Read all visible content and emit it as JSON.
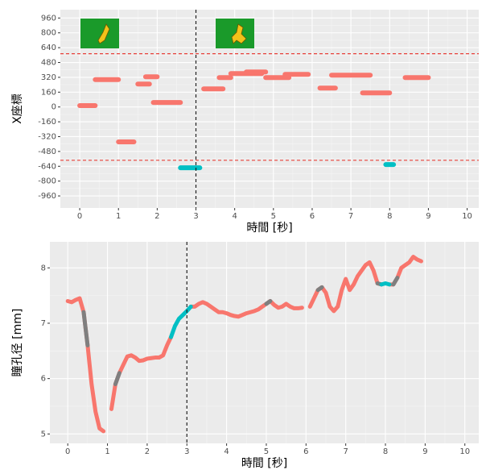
{
  "chart_data": [
    {
      "type": "segments",
      "xlabel": "時間 [秒]",
      "ylabel": "X座標",
      "xlim": [
        -0.5,
        10.3
      ],
      "xticks": [
        0,
        1,
        2,
        3,
        4,
        5,
        6,
        7,
        8,
        9,
        10
      ],
      "ylim": [
        -1090,
        1050
      ],
      "yticks": [
        960,
        800,
        640,
        480,
        320,
        160,
        0,
        -160,
        -320,
        -480,
        -640,
        -800,
        -960
      ],
      "grid": true,
      "segments": {
        "x0": [
          0,
          0.4,
          1.0,
          1.5,
          1.7,
          1.9,
          2.6,
          3.2,
          3.6,
          3.9,
          4.3,
          4.8,
          5.3,
          6.2,
          6.5,
          7.3,
          7.9,
          8.4
        ],
        "x1": [
          0.4,
          1.0,
          1.4,
          1.8,
          2.0,
          2.6,
          3.1,
          3.7,
          3.9,
          4.7,
          4.8,
          5.4,
          5.9,
          6.6,
          7.5,
          8.0,
          8.1,
          9.0
        ],
        "values": [
          15,
          295,
          -377,
          248,
          326,
          48,
          -656,
          195,
          317,
          361,
          378,
          317,
          352,
          204,
          343,
          152,
          -621,
          317
        ],
        "colors": [
          "#f8766d",
          "#f8766d",
          "#f8766d",
          "#f8766d",
          "#f8766d",
          "#f8766d",
          "#00bfc4",
          "#f8766d",
          "#f8766d",
          "#f8766d",
          "#f8766d",
          "#f8766d",
          "#f8766d",
          "#f8766d",
          "#f8766d",
          "#f8766d",
          "#00bfc4",
          "#f8766d"
        ]
      },
      "hlines": [
        575,
        -575
      ],
      "hline_color": "#e8413a",
      "vlines": [
        3
      ]
    },
    {
      "type": "line",
      "xlabel": "時間 [秒]",
      "ylabel": "瞳孔径 [mm]",
      "xlim": [
        -0.45,
        10.35
      ],
      "xticks": [
        0,
        1,
        2,
        3,
        4,
        5,
        6,
        7,
        8,
        9,
        10
      ],
      "ylim": [
        4.83,
        8.47
      ],
      "yticks": [
        5,
        6,
        7,
        8
      ],
      "grid": true,
      "x": [
        0,
        0.1,
        0.2,
        0.3,
        0.4,
        0.5,
        0.6,
        0.7,
        0.8,
        0.9,
        1.0,
        1.1,
        1.2,
        1.3,
        1.4,
        1.5,
        1.6,
        1.7,
        1.8,
        1.9,
        2.0,
        2.1,
        2.2,
        2.3,
        2.4,
        2.5,
        2.6,
        2.7,
        2.8,
        2.9,
        3.0,
        3.1,
        3.2,
        3.3,
        3.4,
        3.5,
        3.6,
        3.7,
        3.8,
        3.9,
        4.0,
        4.1,
        4.2,
        4.3,
        4.4,
        4.5,
        4.6,
        4.7,
        4.8,
        4.9,
        5.0,
        5.1,
        5.2,
        5.3,
        5.4,
        5.5,
        5.6,
        5.7,
        5.8,
        5.9,
        6.0,
        6.1,
        6.2,
        6.3,
        6.4,
        6.5,
        6.6,
        6.7,
        6.8,
        6.9,
        7.0,
        7.1,
        7.2,
        7.3,
        7.4,
        7.5,
        7.6,
        7.7,
        7.8,
        7.9,
        8.0,
        8.1,
        8.2,
        8.3,
        8.4,
        8.5,
        8.6,
        8.7,
        8.8,
        8.9
      ],
      "series": [
        {
          "color": "#f8766d",
          "values": [
            7.4,
            7.38,
            7.42,
            7.45,
            7.2,
            6.6,
            5.9,
            5.4,
            5.1,
            5.05,
            null,
            5.45,
            5.9,
            6.1,
            6.25,
            6.4,
            6.42,
            6.38,
            6.32,
            6.33,
            6.36,
            6.37,
            6.38,
            6.38,
            6.42,
            6.6,
            6.75,
            null,
            null,
            null,
            null,
            7.3,
            7.3,
            7.35,
            7.38,
            7.35,
            7.3,
            7.25,
            7.2,
            7.2,
            7.18,
            7.15,
            7.13,
            7.12,
            7.15,
            7.18,
            7.2,
            7.22,
            7.25,
            7.3,
            7.35,
            7.4,
            7.33,
            7.28,
            7.3,
            7.35,
            7.3,
            7.27,
            7.27,
            7.28,
            null,
            7.3,
            7.45,
            7.6,
            7.65,
            7.55,
            7.3,
            7.22,
            7.3,
            7.6,
            7.8,
            7.6,
            7.7,
            7.85,
            7.95,
            8.05,
            8.1,
            7.95,
            7.72,
            7.7,
            null,
            7.7,
            7.7,
            7.82,
            8.0,
            8.05,
            8.1,
            8.2,
            8.15,
            8.12
          ]
        },
        {
          "color": "#7f7f7f",
          "values": [
            null,
            null,
            null,
            null,
            7.2,
            6.6,
            null,
            null,
            null,
            null,
            null,
            null,
            5.9,
            6.1,
            null,
            null,
            null,
            null,
            null,
            null,
            null,
            null,
            null,
            null,
            null,
            null,
            null,
            null,
            null,
            null,
            null,
            null,
            null,
            null,
            null,
            null,
            null,
            null,
            null,
            null,
            null,
            null,
            null,
            null,
            null,
            null,
            null,
            null,
            null,
            null,
            7.35,
            7.4,
            null,
            null,
            null,
            null,
            null,
            null,
            null,
            null,
            null,
            null,
            null,
            7.6,
            7.65,
            null,
            null,
            null,
            null,
            null,
            null,
            null,
            null,
            null,
            null,
            null,
            null,
            null,
            7.72,
            7.7,
            null,
            null,
            7.7,
            7.82,
            null,
            null,
            null,
            null,
            null,
            null
          ]
        },
        {
          "color": "#00bfc4",
          "values": [
            null,
            null,
            null,
            null,
            null,
            null,
            null,
            null,
            null,
            null,
            null,
            null,
            null,
            null,
            null,
            null,
            null,
            null,
            null,
            null,
            null,
            null,
            null,
            null,
            null,
            null,
            6.75,
            6.95,
            7.08,
            7.15,
            7.22,
            7.3,
            null,
            null,
            null,
            null,
            null,
            null,
            null,
            null,
            null,
            null,
            null,
            null,
            null,
            null,
            null,
            null,
            null,
            null,
            null,
            null,
            null,
            null,
            null,
            null,
            null,
            null,
            null,
            null,
            null,
            null,
            null,
            null,
            null,
            null,
            null,
            null,
            null,
            null,
            null,
            null,
            null,
            null,
            null,
            null,
            null,
            null,
            null,
            7.7,
            7.72,
            7.7,
            null,
            null,
            null,
            null,
            null,
            null,
            null,
            null
          ]
        }
      ],
      "vlines": [
        3
      ]
    }
  ]
}
